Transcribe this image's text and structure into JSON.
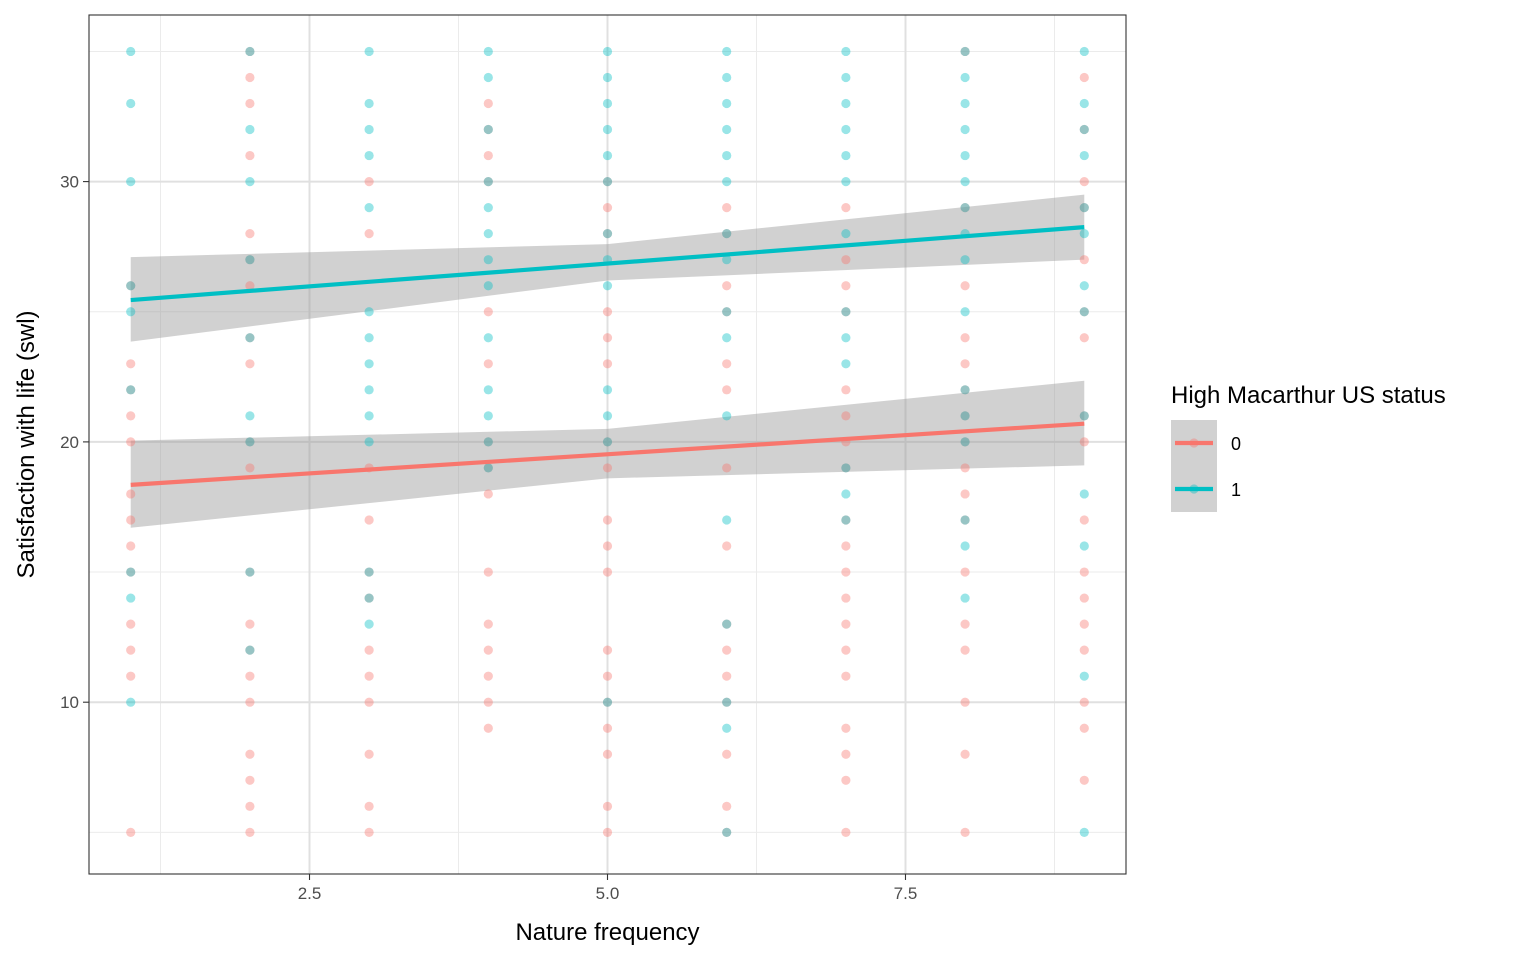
{
  "chart_data": {
    "type": "scatter",
    "xlabel": "Nature frequency",
    "ylabel": "Satisfaction with life (swl)",
    "xlim": [
      0.65,
      9.35
    ],
    "ylim": [
      3.4,
      36.4
    ],
    "x_ticks": [
      2.5,
      5.0,
      7.5
    ],
    "x_tick_labels": [
      "2.5",
      "5.0",
      "7.5"
    ],
    "y_ticks": [
      10,
      20,
      30
    ],
    "y_tick_labels": [
      "10",
      "20",
      "30"
    ],
    "grid": true,
    "legend": {
      "title": "High Macarthur US status",
      "position": "right",
      "entries": [
        {
          "label": "0",
          "color": "#F8766D"
        },
        {
          "label": "1",
          "color": "#00BFC4"
        }
      ]
    },
    "series": [
      {
        "name": "0",
        "color": "#F8766D",
        "points": [
          [
            1,
            26
          ],
          [
            1,
            23
          ],
          [
            1,
            22
          ],
          [
            1,
            21
          ],
          [
            1,
            20
          ],
          [
            1,
            18
          ],
          [
            1,
            17
          ],
          [
            1,
            16
          ],
          [
            1,
            15
          ],
          [
            1,
            13
          ],
          [
            1,
            12
          ],
          [
            1,
            11
          ],
          [
            1,
            5
          ],
          [
            2,
            35
          ],
          [
            2,
            34
          ],
          [
            2,
            33
          ],
          [
            2,
            31
          ],
          [
            2,
            28
          ],
          [
            2,
            27
          ],
          [
            2,
            26
          ],
          [
            2,
            24
          ],
          [
            2,
            23
          ],
          [
            2,
            20
          ],
          [
            2,
            19
          ],
          [
            2,
            15
          ],
          [
            2,
            13
          ],
          [
            2,
            12
          ],
          [
            2,
            11
          ],
          [
            2,
            10
          ],
          [
            2,
            8
          ],
          [
            2,
            7
          ],
          [
            2,
            6
          ],
          [
            2,
            5
          ],
          [
            3,
            30
          ],
          [
            3,
            28
          ],
          [
            3,
            19
          ],
          [
            3,
            17
          ],
          [
            3,
            15
          ],
          [
            3,
            14
          ],
          [
            3,
            12
          ],
          [
            3,
            11
          ],
          [
            3,
            10
          ],
          [
            3,
            8
          ],
          [
            3,
            6
          ],
          [
            3,
            5
          ],
          [
            4,
            33
          ],
          [
            4,
            32
          ],
          [
            4,
            31
          ],
          [
            4,
            30
          ],
          [
            4,
            25
          ],
          [
            4,
            23
          ],
          [
            4,
            20
          ],
          [
            4,
            19
          ],
          [
            4,
            18
          ],
          [
            4,
            15
          ],
          [
            4,
            13
          ],
          [
            4,
            12
          ],
          [
            4,
            11
          ],
          [
            4,
            10
          ],
          [
            4,
            9
          ],
          [
            5,
            30
          ],
          [
            5,
            29
          ],
          [
            5,
            28
          ],
          [
            5,
            25
          ],
          [
            5,
            24
          ],
          [
            5,
            23
          ],
          [
            5,
            20
          ],
          [
            5,
            19
          ],
          [
            5,
            17
          ],
          [
            5,
            16
          ],
          [
            5,
            15
          ],
          [
            5,
            12
          ],
          [
            5,
            11
          ],
          [
            5,
            10
          ],
          [
            5,
            9
          ],
          [
            5,
            8
          ],
          [
            5,
            6
          ],
          [
            5,
            5
          ],
          [
            6,
            29
          ],
          [
            6,
            28
          ],
          [
            6,
            26
          ],
          [
            6,
            25
          ],
          [
            6,
            23
          ],
          [
            6,
            22
          ],
          [
            6,
            19
          ],
          [
            6,
            16
          ],
          [
            6,
            13
          ],
          [
            6,
            12
          ],
          [
            6,
            11
          ],
          [
            6,
            10
          ],
          [
            6,
            8
          ],
          [
            6,
            6
          ],
          [
            6,
            5
          ],
          [
            7,
            29
          ],
          [
            7,
            27
          ],
          [
            7,
            26
          ],
          [
            7,
            25
          ],
          [
            7,
            22
          ],
          [
            7,
            21
          ],
          [
            7,
            20
          ],
          [
            7,
            19
          ],
          [
            7,
            17
          ],
          [
            7,
            16
          ],
          [
            7,
            15
          ],
          [
            7,
            14
          ],
          [
            7,
            13
          ],
          [
            7,
            12
          ],
          [
            7,
            11
          ],
          [
            7,
            9
          ],
          [
            7,
            8
          ],
          [
            7,
            7
          ],
          [
            7,
            5
          ],
          [
            8,
            35
          ],
          [
            8,
            29
          ],
          [
            8,
            26
          ],
          [
            8,
            24
          ],
          [
            8,
            23
          ],
          [
            8,
            22
          ],
          [
            8,
            21
          ],
          [
            8,
            20
          ],
          [
            8,
            19
          ],
          [
            8,
            18
          ],
          [
            8,
            17
          ],
          [
            8,
            15
          ],
          [
            8,
            13
          ],
          [
            8,
            12
          ],
          [
            8,
            10
          ],
          [
            8,
            8
          ],
          [
            8,
            5
          ],
          [
            9,
            34
          ],
          [
            9,
            32
          ],
          [
            9,
            30
          ],
          [
            9,
            29
          ],
          [
            9,
            27
          ],
          [
            9,
            25
          ],
          [
            9,
            24
          ],
          [
            9,
            21
          ],
          [
            9,
            20
          ],
          [
            9,
            17
          ],
          [
            9,
            15
          ],
          [
            9,
            14
          ],
          [
            9,
            13
          ],
          [
            9,
            12
          ],
          [
            9,
            10
          ],
          [
            9,
            9
          ],
          [
            9,
            7
          ]
        ],
        "fit": {
          "x": [
            1,
            9
          ],
          "y": [
            18.35,
            20.7
          ]
        },
        "ci": {
          "x": [
            1,
            5,
            9
          ],
          "lower": [
            16.7,
            18.6,
            19.1
          ],
          "upper": [
            20.05,
            20.5,
            22.35
          ]
        }
      },
      {
        "name": "1",
        "color": "#00BFC4",
        "points": [
          [
            1,
            35
          ],
          [
            1,
            33
          ],
          [
            1,
            30
          ],
          [
            1,
            26
          ],
          [
            1,
            25
          ],
          [
            1,
            22
          ],
          [
            1,
            15
          ],
          [
            1,
            14
          ],
          [
            1,
            10
          ],
          [
            2,
            35
          ],
          [
            2,
            32
          ],
          [
            2,
            30
          ],
          [
            2,
            27
          ],
          [
            2,
            24
          ],
          [
            2,
            21
          ],
          [
            2,
            20
          ],
          [
            2,
            15
          ],
          [
            2,
            12
          ],
          [
            3,
            35
          ],
          [
            3,
            33
          ],
          [
            3,
            32
          ],
          [
            3,
            31
          ],
          [
            3,
            29
          ],
          [
            3,
            25
          ],
          [
            3,
            24
          ],
          [
            3,
            23
          ],
          [
            3,
            22
          ],
          [
            3,
            21
          ],
          [
            3,
            20
          ],
          [
            3,
            15
          ],
          [
            3,
            14
          ],
          [
            3,
            13
          ],
          [
            4,
            35
          ],
          [
            4,
            34
          ],
          [
            4,
            32
          ],
          [
            4,
            30
          ],
          [
            4,
            29
          ],
          [
            4,
            28
          ],
          [
            4,
            27
          ],
          [
            4,
            26
          ],
          [
            4,
            24
          ],
          [
            4,
            22
          ],
          [
            4,
            21
          ],
          [
            4,
            20
          ],
          [
            4,
            19
          ],
          [
            5,
            35
          ],
          [
            5,
            34
          ],
          [
            5,
            33
          ],
          [
            5,
            32
          ],
          [
            5,
            31
          ],
          [
            5,
            30
          ],
          [
            5,
            28
          ],
          [
            5,
            27
          ],
          [
            5,
            26
          ],
          [
            5,
            22
          ],
          [
            5,
            21
          ],
          [
            5,
            20
          ],
          [
            5,
            10
          ],
          [
            6,
            35
          ],
          [
            6,
            34
          ],
          [
            6,
            33
          ],
          [
            6,
            32
          ],
          [
            6,
            31
          ],
          [
            6,
            30
          ],
          [
            6,
            28
          ],
          [
            6,
            27
          ],
          [
            6,
            25
          ],
          [
            6,
            24
          ],
          [
            6,
            21
          ],
          [
            6,
            17
          ],
          [
            6,
            13
          ],
          [
            6,
            10
          ],
          [
            6,
            9
          ],
          [
            6,
            5
          ],
          [
            7,
            35
          ],
          [
            7,
            34
          ],
          [
            7,
            33
          ],
          [
            7,
            32
          ],
          [
            7,
            31
          ],
          [
            7,
            30
          ],
          [
            7,
            28
          ],
          [
            7,
            25
          ],
          [
            7,
            24
          ],
          [
            7,
            23
          ],
          [
            7,
            19
          ],
          [
            7,
            18
          ],
          [
            7,
            17
          ],
          [
            8,
            35
          ],
          [
            8,
            34
          ],
          [
            8,
            33
          ],
          [
            8,
            32
          ],
          [
            8,
            31
          ],
          [
            8,
            30
          ],
          [
            8,
            29
          ],
          [
            8,
            28
          ],
          [
            8,
            27
          ],
          [
            8,
            25
          ],
          [
            8,
            22
          ],
          [
            8,
            21
          ],
          [
            8,
            20
          ],
          [
            8,
            17
          ],
          [
            8,
            16
          ],
          [
            8,
            14
          ],
          [
            9,
            35
          ],
          [
            9,
            33
          ],
          [
            9,
            32
          ],
          [
            9,
            31
          ],
          [
            9,
            29
          ],
          [
            9,
            28
          ],
          [
            9,
            26
          ],
          [
            9,
            25
          ],
          [
            9,
            21
          ],
          [
            9,
            18
          ],
          [
            9,
            16
          ],
          [
            9,
            11
          ],
          [
            9,
            5
          ]
        ],
        "fit": {
          "x": [
            1,
            9
          ],
          "y": [
            25.45,
            28.25
          ]
        },
        "ci": {
          "x": [
            1,
            5,
            9
          ],
          "lower": [
            23.85,
            26.2,
            27.0
          ],
          "upper": [
            27.1,
            27.6,
            29.5
          ]
        }
      }
    ]
  }
}
